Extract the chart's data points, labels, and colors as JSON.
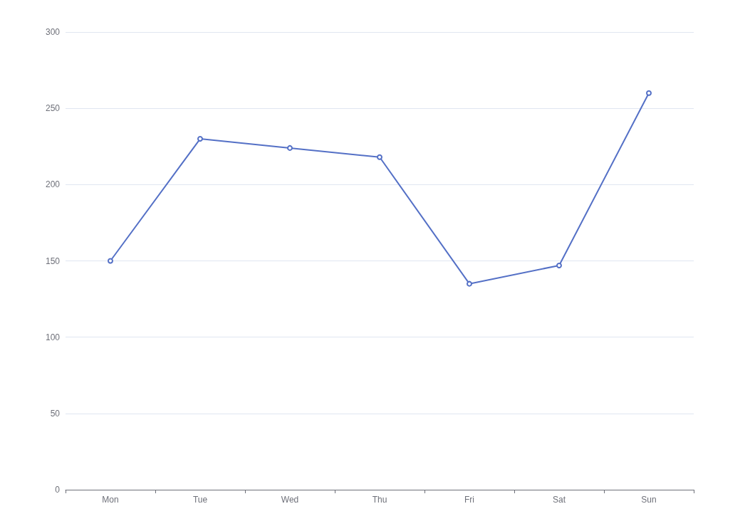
{
  "chart_data": {
    "type": "line",
    "categories": [
      "Mon",
      "Tue",
      "Wed",
      "Thu",
      "Fri",
      "Sat",
      "Sun"
    ],
    "series": [
      {
        "color": "#5470c6",
        "values": [
          150,
          230,
          224,
          218,
          135,
          147,
          260
        ]
      }
    ],
    "ylim": [
      0,
      300
    ],
    "yticks": [
      0,
      50,
      100,
      150,
      200,
      250,
      300
    ],
    "grid": "y",
    "marker": "circle",
    "line_style": "solid"
  }
}
